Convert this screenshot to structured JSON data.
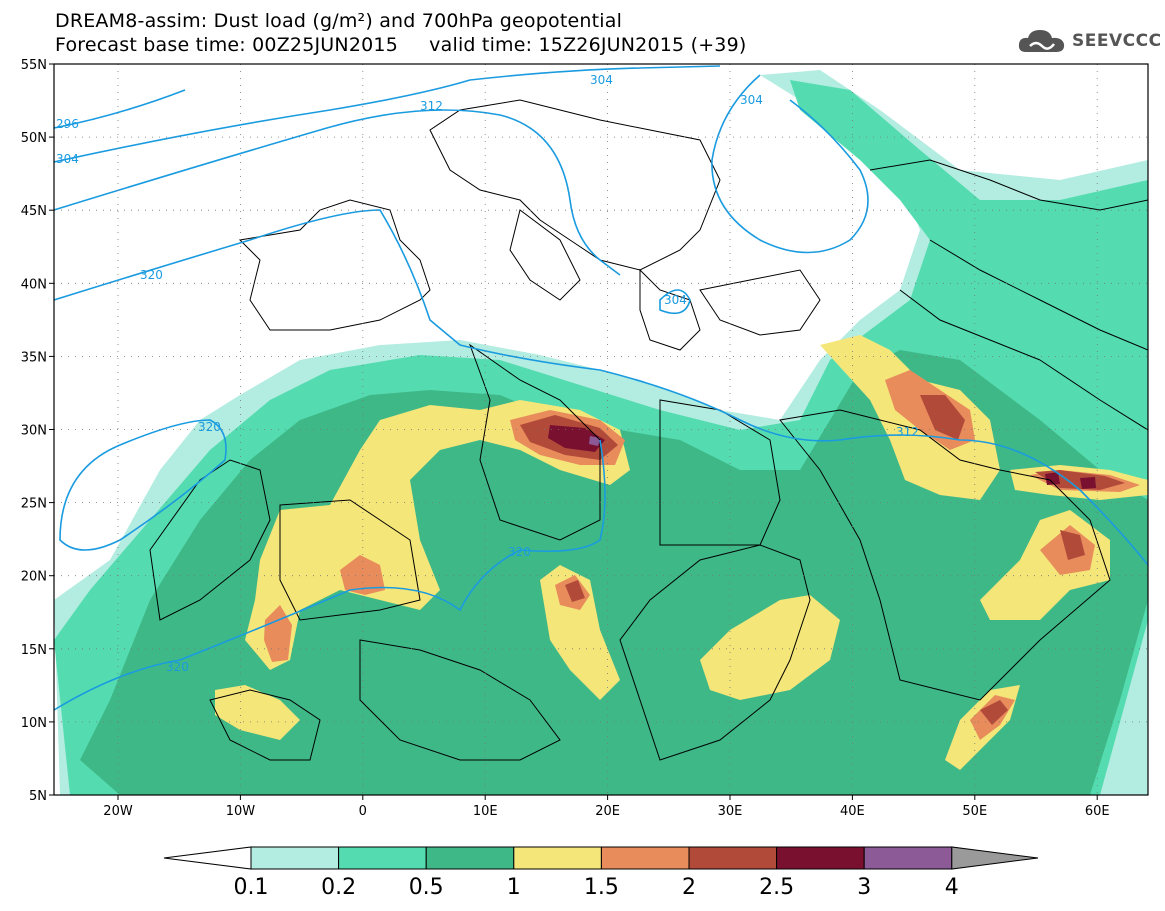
{
  "header": {
    "title_line1": "DREAM8-assim: Dust load (g/m²) and 700hPa geopotential",
    "title_line2": "Forecast base time: 00Z25JUN2015     valid time: 15Z26JUN2015 (+39)",
    "logo_text": "SEEVCCC"
  },
  "map": {
    "lat_labels": [
      "55N",
      "50N",
      "45N",
      "40N",
      "35N",
      "30N",
      "25N",
      "20N",
      "15N",
      "10N",
      "5N"
    ],
    "lon_labels": [
      "20W",
      "10W",
      "0",
      "10E",
      "20E",
      "30E",
      "40E",
      "50E",
      "60E"
    ],
    "contour_labels": [
      "296",
      "304",
      "312",
      "304",
      "304",
      "320",
      "320",
      "304",
      "312",
      "320",
      "320"
    ]
  },
  "legend": {
    "levels": [
      "0.1",
      "0.2",
      "0.5",
      "1",
      "1.5",
      "2",
      "2.5",
      "3",
      "4"
    ],
    "colors": [
      "#ffffff",
      "#b3ece0",
      "#54dcb0",
      "#3fb888",
      "#f5e67a",
      "#e88c5c",
      "#b24a3a",
      "#7a1030",
      "#8c5a96",
      "#9a9a9a"
    ]
  }
}
